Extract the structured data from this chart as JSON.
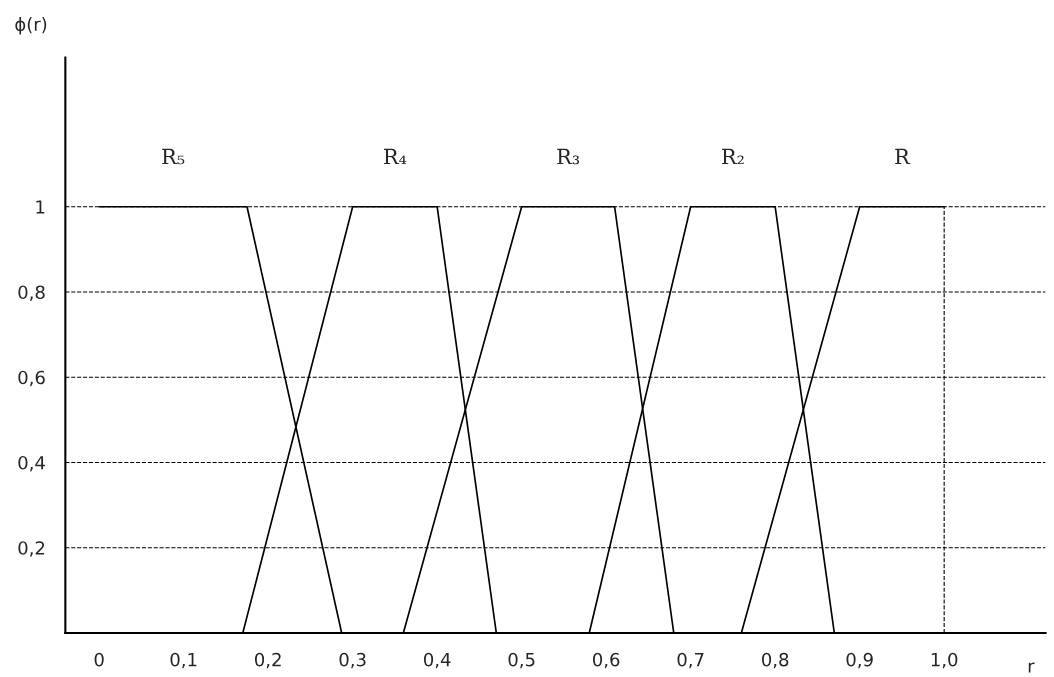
{
  "chart_data": {
    "type": "line",
    "xlabel": "r",
    "ylabel": "ϕ(r)",
    "xlim": [
      -0.04,
      1.12
    ],
    "ylim": [
      0,
      1.35
    ],
    "xticks": [
      {
        "value": 0,
        "label": "0"
      },
      {
        "value": 0.1,
        "label": "0,1"
      },
      {
        "value": 0.2,
        "label": "0,2"
      },
      {
        "value": 0.3,
        "label": "0,3"
      },
      {
        "value": 0.4,
        "label": "0,4"
      },
      {
        "value": 0.5,
        "label": "0,5"
      },
      {
        "value": 0.6,
        "label": "0,6"
      },
      {
        "value": 0.7,
        "label": "0,7"
      },
      {
        "value": 0.8,
        "label": "0,8"
      },
      {
        "value": 0.9,
        "label": "0,9"
      },
      {
        "value": 1.0,
        "label": "1,0"
      }
    ],
    "yticks": [
      {
        "value": 0.2,
        "label": "0,2"
      },
      {
        "value": 0.4,
        "label": "0,4"
      },
      {
        "value": 0.6,
        "label": "0,6"
      },
      {
        "value": 0.8,
        "label": "0,8"
      },
      {
        "value": 1,
        "label": "1"
      }
    ],
    "grid": "y",
    "legend": false,
    "marker": "none",
    "line_style": "solid",
    "ref_lines": [
      {
        "axis": "x",
        "value": 1.0,
        "line_style": "dashed",
        "color": "#000000"
      }
    ],
    "series": [
      {
        "name": "R₅",
        "color": "#000000",
        "x": [
          0,
          0.175,
          0.287
        ],
        "values": [
          1,
          1,
          0
        ]
      },
      {
        "name": "R₄",
        "color": "#000000",
        "x": [
          0.17,
          0.3,
          0.4,
          0.47
        ],
        "values": [
          0,
          1,
          1,
          0
        ]
      },
      {
        "name": "R₃",
        "color": "#000000",
        "x": [
          0.36,
          0.5,
          0.61,
          0.68
        ],
        "values": [
          0,
          1,
          1,
          0
        ]
      },
      {
        "name": "R₂",
        "color": "#000000",
        "x": [
          0.58,
          0.7,
          0.8,
          0.87
        ],
        "values": [
          0,
          1,
          1,
          0
        ]
      },
      {
        "name": "R",
        "color": "#000000",
        "x": [
          0.76,
          0.9,
          1.0
        ],
        "values": [
          0,
          1,
          1
        ]
      }
    ]
  }
}
